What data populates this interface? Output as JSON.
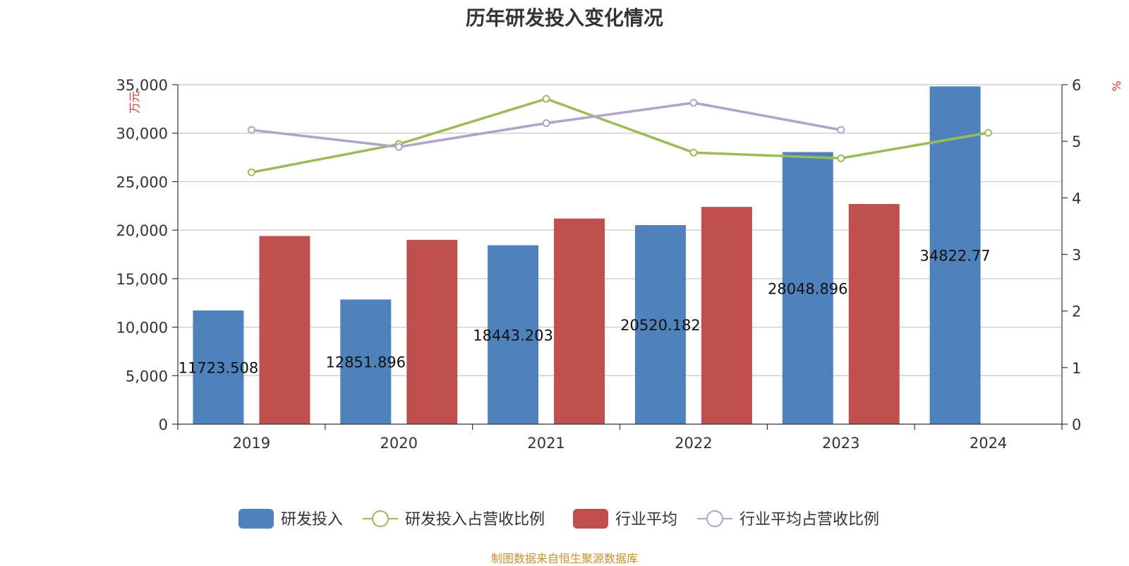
{
  "chart_data": {
    "type": "bar",
    "title": "历年研发投入变化情况",
    "categories": [
      "2019",
      "2020",
      "2021",
      "2022",
      "2023",
      "2024"
    ],
    "y_left": {
      "unit": "万元",
      "ticks": [
        "0",
        "5,000",
        "10,000",
        "15,000",
        "20,000",
        "25,000",
        "30,000",
        "35,000"
      ],
      "ylim": [
        0,
        35000
      ]
    },
    "y_right": {
      "unit": "%",
      "ticks": [
        "0",
        "1",
        "2",
        "3",
        "4",
        "5",
        "6"
      ],
      "ylim": [
        0,
        6
      ]
    },
    "grid": true,
    "legend_position": "bottom",
    "series": [
      {
        "name": "研发投入",
        "kind": "bar",
        "axis": "left",
        "color": "#4f81bd",
        "values": [
          11723.508,
          12851.896,
          18443.203,
          20520.182,
          28048.896,
          34822.77
        ],
        "labels": [
          "11723.508",
          "12851.896",
          "18443.203",
          "20520.182",
          "28048.896",
          "34822.77"
        ]
      },
      {
        "name": "研发投入占营收比例",
        "kind": "line",
        "axis": "right",
        "color": "#9bbb59",
        "values": [
          4.45,
          4.95,
          5.75,
          4.8,
          4.7,
          5.15
        ]
      },
      {
        "name": "行业平均",
        "kind": "bar",
        "axis": "left",
        "color": "#c0504d",
        "values": [
          19400,
          19000,
          21200,
          22400,
          22700,
          null
        ]
      },
      {
        "name": "行业平均占营收比例",
        "kind": "line",
        "axis": "right",
        "color": "#b3a2c7",
        "values": [
          5.2,
          4.9,
          5.32,
          5.68,
          5.2,
          null
        ]
      }
    ]
  },
  "footer": {
    "source": "制图数据来自恒生聚源数据库"
  }
}
